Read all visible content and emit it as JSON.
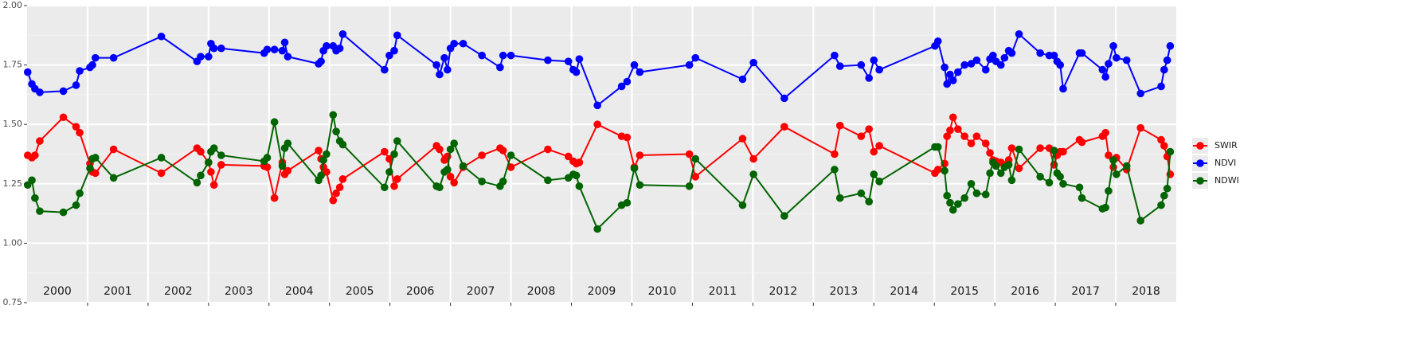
{
  "chart_data": {
    "type": "line",
    "x": [
      2000.01,
      2000.08,
      2000.13,
      2000.21,
      2000.6,
      2000.81,
      2000.87,
      2001.04,
      2001.08,
      2001.13,
      2001.43,
      2002.22,
      2002.81,
      2002.87,
      2003.0,
      2003.04,
      2003.09,
      2003.21,
      2003.92,
      2003.97,
      2004.09,
      2004.22,
      2004.26,
      2004.31,
      2004.82,
      2004.86,
      2004.9,
      2004.95,
      2005.06,
      2005.11,
      2005.17,
      2005.22,
      2005.91,
      2005.99,
      2006.07,
      2006.12,
      2006.77,
      2006.82,
      2006.9,
      2006.95,
      2007.0,
      2007.06,
      2007.21,
      2007.52,
      2007.82,
      2007.87,
      2008.0,
      2008.61,
      2008.95,
      2009.03,
      2009.08,
      2009.13,
      2009.43,
      2009.83,
      2009.92,
      2010.04,
      2010.13,
      2010.95,
      2011.05,
      2011.83,
      2012.01,
      2012.52,
      2013.35,
      2013.44,
      2013.79,
      2013.92,
      2014.0,
      2014.09,
      2015.01,
      2015.06,
      2015.17,
      2015.21,
      2015.26,
      2015.31,
      2015.39,
      2015.5,
      2015.61,
      2015.7,
      2015.85,
      2015.92,
      2015.97,
      2016.02,
      2016.1,
      2016.16,
      2016.23,
      2016.28,
      2016.4,
      2016.75,
      2016.9,
      2016.98,
      2017.03,
      2017.08,
      2017.13,
      2017.4,
      2017.44,
      2017.78,
      2017.83,
      2017.88,
      2017.96,
      2018.01,
      2018.18,
      2018.41,
      2018.75,
      2018.8,
      2018.85,
      2018.9
    ],
    "series": [
      {
        "name": "SWIR",
        "color": "#ff0000",
        "values": [
          1.37,
          1.36,
          1.37,
          1.43,
          1.53,
          1.49,
          1.465,
          1.335,
          1.3,
          1.295,
          1.395,
          1.295,
          1.4,
          1.385,
          1.34,
          1.3,
          1.245,
          1.33,
          1.325,
          1.32,
          1.19,
          1.34,
          1.29,
          1.305,
          1.39,
          1.355,
          1.32,
          1.3,
          1.18,
          1.21,
          1.235,
          1.27,
          1.385,
          1.355,
          1.24,
          1.27,
          1.41,
          1.395,
          1.35,
          1.365,
          1.28,
          1.255,
          1.32,
          1.37,
          1.4,
          1.39,
          1.32,
          1.395,
          1.365,
          1.345,
          1.335,
          1.34,
          1.5,
          1.45,
          1.445,
          1.32,
          1.37,
          1.375,
          1.28,
          1.44,
          1.355,
          1.49,
          1.375,
          1.495,
          1.45,
          1.48,
          1.385,
          1.41,
          1.295,
          1.31,
          1.335,
          1.45,
          1.475,
          1.53,
          1.48,
          1.45,
          1.42,
          1.45,
          1.42,
          1.38,
          1.35,
          1.345,
          1.34,
          1.33,
          1.35,
          1.4,
          1.315,
          1.4,
          1.4,
          1.33,
          1.37,
          1.385,
          1.385,
          1.435,
          1.425,
          1.45,
          1.465,
          1.37,
          1.32,
          1.36,
          1.31,
          1.485,
          1.435,
          1.41,
          1.365,
          1.29
        ]
      },
      {
        "name": "NDVI",
        "color": "#0000ff",
        "values": [
          1.72,
          1.67,
          1.65,
          1.635,
          1.64,
          1.665,
          1.725,
          1.74,
          1.75,
          1.78,
          1.78,
          1.87,
          1.765,
          1.785,
          1.785,
          1.84,
          1.82,
          1.82,
          1.8,
          1.815,
          1.815,
          1.81,
          1.845,
          1.785,
          1.755,
          1.765,
          1.81,
          1.83,
          1.83,
          1.81,
          1.82,
          1.88,
          1.73,
          1.79,
          1.81,
          1.875,
          1.75,
          1.71,
          1.78,
          1.73,
          1.82,
          1.84,
          1.84,
          1.79,
          1.74,
          1.79,
          1.79,
          1.77,
          1.765,
          1.73,
          1.72,
          1.775,
          1.58,
          1.66,
          1.68,
          1.75,
          1.72,
          1.75,
          1.78,
          1.69,
          1.76,
          1.61,
          1.79,
          1.745,
          1.75,
          1.695,
          1.77,
          1.73,
          1.83,
          1.85,
          1.74,
          1.67,
          1.71,
          1.685,
          1.72,
          1.75,
          1.755,
          1.77,
          1.73,
          1.775,
          1.79,
          1.765,
          1.75,
          1.78,
          1.81,
          1.8,
          1.88,
          1.8,
          1.79,
          1.79,
          1.765,
          1.75,
          1.65,
          1.8,
          1.8,
          1.73,
          1.7,
          1.755,
          1.83,
          1.78,
          1.77,
          1.63,
          1.66,
          1.73,
          1.77,
          1.83
        ]
      },
      {
        "name": "NDWI",
        "color": "#006400",
        "values": [
          1.245,
          1.265,
          1.19,
          1.135,
          1.13,
          1.16,
          1.21,
          1.315,
          1.355,
          1.36,
          1.275,
          1.36,
          1.255,
          1.285,
          1.34,
          1.385,
          1.4,
          1.37,
          1.345,
          1.36,
          1.51,
          1.325,
          1.4,
          1.42,
          1.265,
          1.285,
          1.35,
          1.375,
          1.54,
          1.47,
          1.43,
          1.415,
          1.235,
          1.3,
          1.375,
          1.43,
          1.24,
          1.235,
          1.3,
          1.31,
          1.395,
          1.42,
          1.325,
          1.26,
          1.24,
          1.26,
          1.37,
          1.265,
          1.275,
          1.29,
          1.285,
          1.24,
          1.06,
          1.16,
          1.17,
          1.315,
          1.245,
          1.24,
          1.355,
          1.16,
          1.29,
          1.115,
          1.31,
          1.19,
          1.21,
          1.175,
          1.29,
          1.26,
          1.405,
          1.405,
          1.305,
          1.2,
          1.17,
          1.14,
          1.165,
          1.19,
          1.25,
          1.21,
          1.205,
          1.295,
          1.34,
          1.325,
          1.295,
          1.32,
          1.33,
          1.265,
          1.395,
          1.28,
          1.255,
          1.39,
          1.295,
          1.28,
          1.25,
          1.235,
          1.19,
          1.145,
          1.15,
          1.22,
          1.35,
          1.29,
          1.325,
          1.095,
          1.16,
          1.2,
          1.23,
          1.385
        ]
      }
    ],
    "xlim": [
      2000,
      2019
    ],
    "xticks": [
      {
        "value": 2000.5,
        "label": "2000"
      },
      {
        "value": 2001.5,
        "label": "2001"
      },
      {
        "value": 2002.5,
        "label": "2002"
      },
      {
        "value": 2003.5,
        "label": "2003"
      },
      {
        "value": 2004.5,
        "label": "2004"
      },
      {
        "value": 2005.5,
        "label": "2005"
      },
      {
        "value": 2006.5,
        "label": "2006"
      },
      {
        "value": 2007.5,
        "label": "2007"
      },
      {
        "value": 2008.5,
        "label": "2008"
      },
      {
        "value": 2009.5,
        "label": "2009"
      },
      {
        "value": 2010.5,
        "label": "2010"
      },
      {
        "value": 2011.5,
        "label": "2011"
      },
      {
        "value": 2012.5,
        "label": "2012"
      },
      {
        "value": 2013.5,
        "label": "2013"
      },
      {
        "value": 2014.5,
        "label": "2014"
      },
      {
        "value": 2015.5,
        "label": "2015"
      },
      {
        "value": 2016.5,
        "label": "2016"
      },
      {
        "value": 2017.5,
        "label": "2017"
      },
      {
        "value": 2018.5,
        "label": "2018"
      }
    ],
    "ylim": [
      0.75,
      2
    ],
    "yticks": [
      0.75,
      {
        "value": 1,
        "label": "1.00"
      },
      1.25,
      {
        "value": 1.5,
        "label": "1.50"
      },
      1.75,
      {
        "value": 2,
        "label": "2.00"
      }
    ],
    "grid": true,
    "legend": "right"
  }
}
